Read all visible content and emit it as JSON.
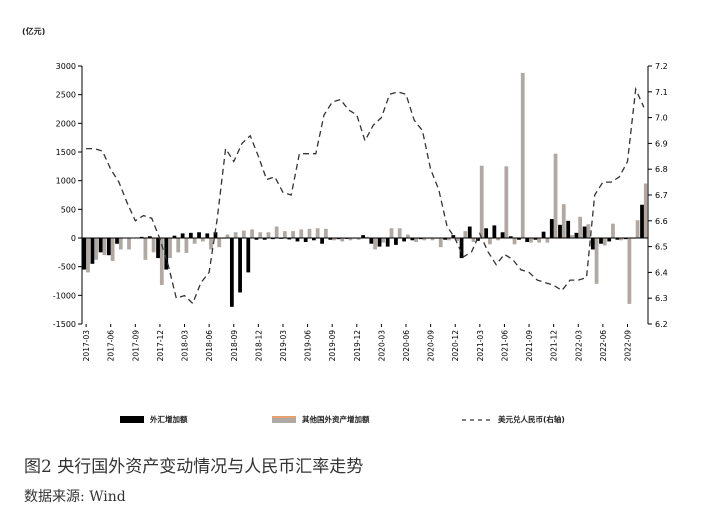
{
  "figure": {
    "unit_label": "(亿元)",
    "caption": "图2   央行国外资产变动情况与人民币汇率走势",
    "source": "数据来源:  Wind"
  },
  "chart_data": {
    "type": "bar",
    "title": "",
    "xlabel": "",
    "ylabel": "亿元",
    "y2label": "美元兑人民币(右轴)",
    "ylim": [
      -1500,
      3000
    ],
    "y2lim": [
      6.2,
      7.2
    ],
    "yticks": [
      -1500,
      -1000,
      -500,
      0,
      500,
      1000,
      1500,
      2000,
      2500,
      3000
    ],
    "y2ticks": [
      6.2,
      6.3,
      6.4,
      6.5,
      6.6,
      6.7,
      6.8,
      6.9,
      7.0,
      7.1,
      7.2
    ],
    "categories": [
      "2017-03",
      "2017-04",
      "2017-05",
      "2017-06",
      "2017-07",
      "2017-08",
      "2017-09",
      "2017-10",
      "2017-11",
      "2017-12",
      "2018-01",
      "2018-02",
      "2018-03",
      "2018-04",
      "2018-05",
      "2018-06",
      "2018-07",
      "2018-08",
      "2018-09",
      "2018-10",
      "2018-11",
      "2018-12",
      "2019-01",
      "2019-02",
      "2019-03",
      "2019-04",
      "2019-05",
      "2019-06",
      "2019-07",
      "2019-08",
      "2019-09",
      "2019-10",
      "2019-11",
      "2019-12",
      "2020-01",
      "2020-02",
      "2020-03",
      "2020-04",
      "2020-05",
      "2020-06",
      "2020-07",
      "2020-08",
      "2020-09",
      "2020-10",
      "2020-11",
      "2020-12",
      "2021-01",
      "2021-02",
      "2021-03",
      "2021-04",
      "2021-05",
      "2021-06",
      "2021-07",
      "2021-08",
      "2021-09",
      "2021-10",
      "2021-11",
      "2021-12",
      "2022-01",
      "2022-02",
      "2022-03",
      "2022-04",
      "2022-05",
      "2022-06",
      "2022-07",
      "2022-08",
      "2022-09",
      "2022-10",
      "2022-11"
    ],
    "xtick_labels": [
      "2017-03",
      "2017-06",
      "2017-09",
      "2017-12",
      "2018-03",
      "2018-06",
      "2018-09",
      "2018-12",
      "2019-03",
      "2019-06",
      "2019-09",
      "2019-12",
      "2020-03",
      "2020-06",
      "2020-09",
      "2020-12",
      "2021-03",
      "2021-06",
      "2021-09",
      "2021-12",
      "2022-03",
      "2022-06",
      "2022-09"
    ],
    "series": [
      {
        "name": "外汇增加额",
        "kind": "bar",
        "color": "#000000",
        "values": [
          -550,
          -450,
          -250,
          -300,
          -100,
          0,
          0,
          20,
          30,
          -350,
          -550,
          40,
          80,
          90,
          100,
          80,
          100,
          -10,
          -1200,
          -950,
          -600,
          -30,
          -30,
          -20,
          -15,
          -25,
          -60,
          -70,
          -40,
          -100,
          -30,
          -20,
          -15,
          -10,
          50,
          -100,
          -150,
          -150,
          -120,
          -60,
          -40,
          -20,
          -10,
          -10,
          -30,
          50,
          -350,
          200,
          -50,
          170,
          220,
          100,
          30,
          -30,
          -70,
          -30,
          110,
          330,
          230,
          300,
          90,
          200,
          -200,
          -100,
          -60,
          -30,
          -20,
          -10,
          580
        ]
      },
      {
        "name": "其他国外资产增加额",
        "kind": "bar",
        "color": "#b0a8a3",
        "values": [
          -600,
          -380,
          -300,
          -400,
          -200,
          -200,
          10,
          -380,
          -250,
          -820,
          -350,
          -250,
          -260,
          -100,
          -60,
          -200,
          -160,
          60,
          100,
          130,
          150,
          100,
          100,
          200,
          120,
          120,
          150,
          160,
          170,
          160,
          -40,
          -60,
          -40,
          -30,
          20,
          -200,
          -80,
          170,
          170,
          60,
          -70,
          -40,
          -40,
          -160,
          -40,
          -50,
          120,
          -70,
          1260,
          -110,
          -40,
          1250,
          -110,
          2880,
          -80,
          -80,
          -80,
          1470,
          590,
          50,
          370,
          240,
          -800,
          -130,
          250,
          -40,
          -1150,
          310,
          950
        ]
      },
      {
        "name": "美元兑人民币(右轴)",
        "kind": "line",
        "axis": "right",
        "color": "#333333",
        "style": "dashed",
        "values": [
          6.88,
          6.88,
          6.87,
          6.8,
          6.75,
          6.67,
          6.6,
          6.62,
          6.61,
          6.53,
          6.43,
          6.3,
          6.31,
          6.28,
          6.36,
          6.4,
          6.61,
          6.88,
          6.83,
          6.9,
          6.93,
          6.85,
          6.76,
          6.77,
          6.71,
          6.7,
          6.86,
          6.86,
          6.86,
          7.01,
          7.06,
          7.07,
          7.03,
          7.01,
          6.91,
          6.97,
          7.0,
          7.09,
          7.1,
          7.09,
          6.99,
          6.95,
          6.8,
          6.72,
          6.58,
          6.53,
          6.46,
          6.48,
          6.55,
          6.48,
          6.43,
          6.47,
          6.45,
          6.41,
          6.4,
          6.37,
          6.36,
          6.35,
          6.33,
          6.37,
          6.37,
          6.38,
          6.7,
          6.75,
          6.75,
          6.77,
          6.83,
          7.11,
          7.04
        ]
      }
    ],
    "legend": {
      "position": "bottom",
      "items": [
        "外汇增加额",
        "其他国外资产增加额",
        "美元兑人民币(右轴)"
      ]
    },
    "grid": false
  }
}
